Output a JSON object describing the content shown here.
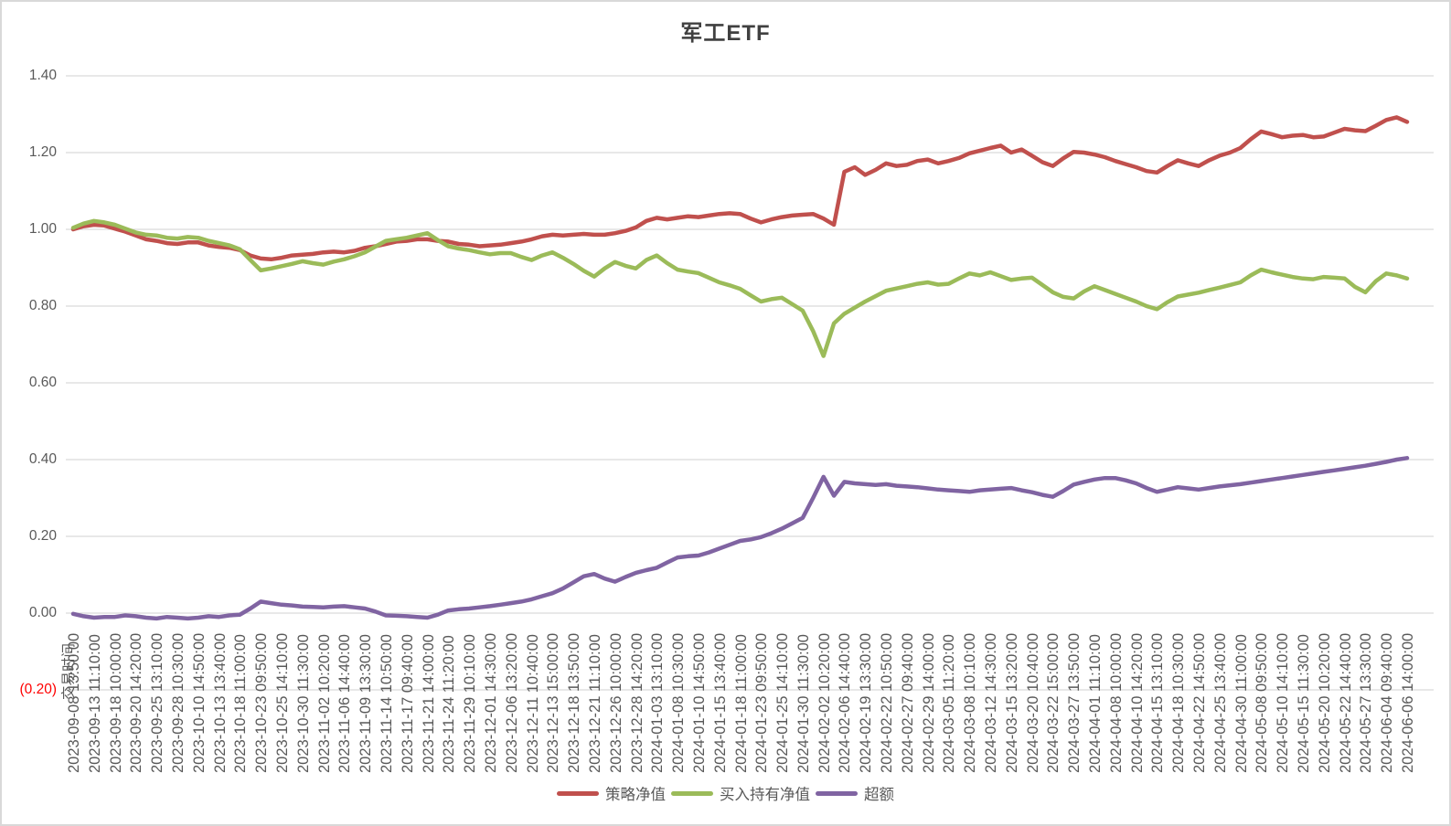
{
  "title": "军工ETF",
  "colors": {
    "strategy": "#C0504D",
    "buyhold": "#9BBB59",
    "excess": "#8064A2",
    "gridline": "#D9D9D9",
    "axis_text": "#595959",
    "negative_tick": "#FF0000",
    "title_text": "#404040",
    "background": "#FFFFFF"
  },
  "axis": {
    "x_title": "交易时间",
    "y_ticks": [
      {
        "label": "1.40",
        "value": 1.4
      },
      {
        "label": "1.20",
        "value": 1.2
      },
      {
        "label": "1.00",
        "value": 1.0
      },
      {
        "label": "0.80",
        "value": 0.8
      },
      {
        "label": "0.60",
        "value": 0.6
      },
      {
        "label": "0.40",
        "value": 0.4
      },
      {
        "label": "0.20",
        "value": 0.2
      },
      {
        "label": "0.00",
        "value": 0.0
      },
      {
        "label": "(0.20)",
        "value": -0.2,
        "negative": true
      }
    ]
  },
  "legend": [
    {
      "label": "策略净值",
      "color": "#C0504D"
    },
    {
      "label": "买入持有净值",
      "color": "#9BBB59"
    },
    {
      "label": "超额",
      "color": "#8064A2"
    }
  ],
  "chart_data": {
    "type": "line",
    "title": "军工ETF",
    "xlabel": "交易时间",
    "ylabel": "",
    "ylim": [
      -0.2,
      1.4
    ],
    "y_tick_step": 0.2,
    "grid": true,
    "legend_position": "bottom",
    "points_per_label_interval": 2,
    "x_labels": [
      "2023-09-08 13:50:00",
      "2023-09-13 11:10:00",
      "2023-09-18 10:00:00",
      "2023-09-20 14:20:00",
      "2023-09-25 13:10:00",
      "2023-09-28 10:30:00",
      "2023-10-10 14:50:00",
      "2023-10-13 13:40:00",
      "2023-10-18 11:00:00",
      "2023-10-23 09:50:00",
      "2023-10-25 14:10:00",
      "2023-10-30 11:30:00",
      "2023-11-02 10:20:00",
      "2023-11-06 14:40:00",
      "2023-11-09 13:30:00",
      "2023-11-14 10:50:00",
      "2023-11-17 09:40:00",
      "2023-11-21 14:00:00",
      "2023-11-24 11:20:00",
      "2023-11-29 10:10:00",
      "2023-12-01 14:30:00",
      "2023-12-06 13:20:00",
      "2023-12-11 10:40:00",
      "2023-12-13 15:00:00",
      "2023-12-18 13:50:00",
      "2023-12-21 11:10:00",
      "2023-12-26 10:00:00",
      "2023-12-28 14:20:00",
      "2024-01-03 13:10:00",
      "2024-01-08 10:30:00",
      "2024-01-10 14:50:00",
      "2024-01-15 13:40:00",
      "2024-01-18 11:00:00",
      "2024-01-23 09:50:00",
      "2024-01-25 14:10:00",
      "2024-01-30 11:30:00",
      "2024-02-02 10:20:00",
      "2024-02-06 14:40:00",
      "2024-02-19 13:30:00",
      "2024-02-22 10:50:00",
      "2024-02-27 09:40:00",
      "2024-02-29 14:00:00",
      "2024-03-05 11:20:00",
      "2024-03-08 10:10:00",
      "2024-03-12 14:30:00",
      "2024-03-15 13:20:00",
      "2024-03-20 10:40:00",
      "2024-03-22 15:00:00",
      "2024-03-27 13:50:00",
      "2024-04-01 11:10:00",
      "2024-04-08 10:00:00",
      "2024-04-10 14:20:00",
      "2024-04-15 13:10:00",
      "2024-04-18 10:30:00",
      "2024-04-22 14:50:00",
      "2024-04-25 13:40:00",
      "2024-04-30 11:00:00",
      "2024-05-08 09:50:00",
      "2024-05-10 14:10:00",
      "2024-05-15 11:30:00",
      "2024-05-20 10:20:00",
      "2024-05-22 14:40:00",
      "2024-05-27 13:30:00",
      "2024-06-04 09:40:00",
      "2024-06-06 14:00:00"
    ],
    "series": [
      {
        "name": "策略净值",
        "color": "#C0504D",
        "values": [
          1.0,
          1.008,
          1.012,
          1.01,
          1.002,
          0.994,
          0.984,
          0.974,
          0.97,
          0.964,
          0.962,
          0.966,
          0.966,
          0.958,
          0.954,
          0.952,
          0.946,
          0.932,
          0.924,
          0.922,
          0.926,
          0.932,
          0.934,
          0.936,
          0.94,
          0.942,
          0.94,
          0.944,
          0.952,
          0.956,
          0.962,
          0.968,
          0.97,
          0.974,
          0.974,
          0.97,
          0.968,
          0.962,
          0.96,
          0.956,
          0.958,
          0.96,
          0.964,
          0.968,
          0.974,
          0.982,
          0.986,
          0.984,
          0.986,
          0.988,
          0.986,
          0.986,
          0.99,
          0.996,
          1.005,
          1.022,
          1.03,
          1.026,
          1.03,
          1.034,
          1.032,
          1.036,
          1.04,
          1.042,
          1.04,
          1.028,
          1.018,
          1.026,
          1.032,
          1.036,
          1.038,
          1.04,
          1.028,
          1.012,
          1.15,
          1.162,
          1.142,
          1.155,
          1.172,
          1.165,
          1.168,
          1.178,
          1.182,
          1.172,
          1.178,
          1.186,
          1.198,
          1.205,
          1.212,
          1.218,
          1.2,
          1.208,
          1.192,
          1.175,
          1.165,
          1.185,
          1.202,
          1.2,
          1.195,
          1.188,
          1.178,
          1.17,
          1.162,
          1.152,
          1.148,
          1.165,
          1.18,
          1.172,
          1.165,
          1.18,
          1.192,
          1.2,
          1.212,
          1.235,
          1.255,
          1.248,
          1.24,
          1.244,
          1.246,
          1.24,
          1.242,
          1.252,
          1.262,
          1.258,
          1.256,
          1.27,
          1.285,
          1.292,
          1.28
        ]
      },
      {
        "name": "买入持有净值",
        "color": "#9BBB59",
        "values": [
          1.004,
          1.015,
          1.022,
          1.018,
          1.012,
          1.002,
          0.992,
          0.986,
          0.984,
          0.978,
          0.976,
          0.98,
          0.978,
          0.97,
          0.964,
          0.958,
          0.948,
          0.92,
          0.893,
          0.898,
          0.904,
          0.91,
          0.917,
          0.912,
          0.908,
          0.916,
          0.922,
          0.93,
          0.94,
          0.955,
          0.97,
          0.974,
          0.978,
          0.984,
          0.99,
          0.972,
          0.956,
          0.95,
          0.946,
          0.94,
          0.935,
          0.938,
          0.938,
          0.928,
          0.92,
          0.932,
          0.94,
          0.926,
          0.91,
          0.892,
          0.877,
          0.898,
          0.915,
          0.905,
          0.898,
          0.92,
          0.932,
          0.912,
          0.895,
          0.89,
          0.886,
          0.874,
          0.862,
          0.854,
          0.845,
          0.828,
          0.812,
          0.818,
          0.822,
          0.805,
          0.788,
          0.735,
          0.67,
          0.755,
          0.78,
          0.796,
          0.812,
          0.826,
          0.84,
          0.846,
          0.852,
          0.858,
          0.862,
          0.856,
          0.858,
          0.872,
          0.885,
          0.88,
          0.888,
          0.878,
          0.868,
          0.872,
          0.874,
          0.855,
          0.836,
          0.824,
          0.82,
          0.838,
          0.852,
          0.842,
          0.832,
          0.822,
          0.812,
          0.8,
          0.792,
          0.81,
          0.825,
          0.83,
          0.835,
          0.842,
          0.848,
          0.855,
          0.862,
          0.88,
          0.895,
          0.888,
          0.882,
          0.876,
          0.872,
          0.87,
          0.876,
          0.874,
          0.872,
          0.85,
          0.836,
          0.865,
          0.885,
          0.88,
          0.872
        ]
      },
      {
        "name": "超额",
        "color": "#8064A2",
        "values": [
          -0.002,
          -0.008,
          -0.012,
          -0.01,
          -0.01,
          -0.006,
          -0.008,
          -0.012,
          -0.014,
          -0.01,
          -0.012,
          -0.014,
          -0.012,
          -0.008,
          -0.01,
          -0.006,
          -0.004,
          0.012,
          0.03,
          0.026,
          0.022,
          0.02,
          0.017,
          0.016,
          0.015,
          0.017,
          0.018,
          0.015,
          0.012,
          0.004,
          -0.006,
          -0.007,
          -0.008,
          -0.01,
          -0.012,
          -0.004,
          0.007,
          0.01,
          0.012,
          0.015,
          0.018,
          0.022,
          0.026,
          0.03,
          0.036,
          0.044,
          0.052,
          0.064,
          0.08,
          0.096,
          0.102,
          0.09,
          0.082,
          0.094,
          0.105,
          0.112,
          0.118,
          0.132,
          0.145,
          0.148,
          0.15,
          0.158,
          0.168,
          0.178,
          0.188,
          0.192,
          0.198,
          0.208,
          0.22,
          0.234,
          0.248,
          0.3,
          0.355,
          0.306,
          0.342,
          0.338,
          0.336,
          0.334,
          0.336,
          0.332,
          0.33,
          0.328,
          0.325,
          0.322,
          0.32,
          0.318,
          0.316,
          0.32,
          0.322,
          0.324,
          0.326,
          0.32,
          0.315,
          0.308,
          0.303,
          0.318,
          0.335,
          0.342,
          0.348,
          0.352,
          0.352,
          0.346,
          0.338,
          0.326,
          0.316,
          0.322,
          0.328,
          0.325,
          0.322,
          0.326,
          0.33,
          0.333,
          0.336,
          0.34,
          0.344,
          0.348,
          0.352,
          0.356,
          0.36,
          0.364,
          0.368,
          0.372,
          0.376,
          0.38,
          0.384,
          0.389,
          0.394,
          0.4,
          0.404
        ]
      }
    ]
  }
}
